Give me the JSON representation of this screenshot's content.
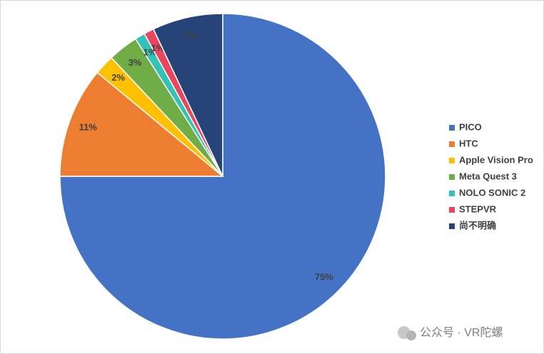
{
  "chart_data": {
    "type": "pie",
    "categories": [
      "PICO",
      "HTC",
      "Apple Vision Pro",
      "Meta Quest 3",
      "NOLO SONIC 2",
      "STEPVR",
      "尚不明确"
    ],
    "values": [
      75,
      11,
      2,
      3,
      1,
      1,
      7
    ],
    "value_labels": [
      "75%",
      "11%",
      "2%",
      "3%",
      "1%",
      "1%",
      "7%"
    ],
    "colors": [
      "#4472c4",
      "#ed7d31",
      "#ffc000",
      "#70ad47",
      "#33c3b4",
      "#e8475f",
      "#264478"
    ],
    "legend": "right",
    "watermark": "公众号 · VR陀螺"
  }
}
